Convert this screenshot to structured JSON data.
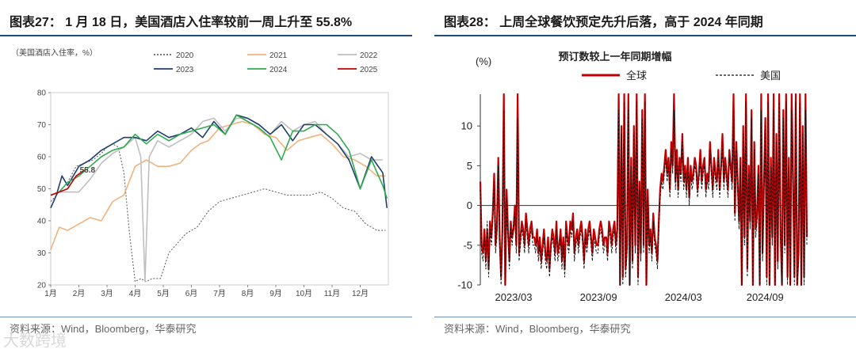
{
  "left": {
    "title": "图表27：  1 月 18 日，美国酒店入住率较前一周上升至 55.8%",
    "source": "资料来源：Wind，Bloomberg，华泰研究",
    "watermark": "大数跨境"
  },
  "right": {
    "title": "图表28：  上周全球餐饮预定先升后落，高于 2024 年同期",
    "source": "资料来源：Wind，Bloomberg，华泰研究"
  },
  "chart_data": [
    {
      "type": "line",
      "ylabel": "（美国酒店入住率，%）",
      "ylim": [
        20,
        80
      ],
      "yticks": [
        20,
        30,
        40,
        50,
        60,
        70,
        80
      ],
      "xlim": [
        1,
        13
      ],
      "xticks": [
        "1月",
        "2月",
        "3月",
        "4月",
        "5月",
        "6月",
        "7月",
        "8月",
        "9月",
        "10月",
        "11月",
        "12月"
      ],
      "legend_position": "top",
      "annotation": {
        "text": "55.8",
        "x": 2.2,
        "y": 55.8
      },
      "series": [
        {
          "name": "2020",
          "color": "#666666",
          "dash": "2,2",
          "x": [
            1,
            1.3,
            1.6,
            1.9,
            2.2,
            2.5,
            2.8,
            3.0,
            3.2,
            3.4,
            3.6,
            3.8,
            4.0,
            4.2,
            4.4,
            4.6,
            4.9,
            5.2,
            5.5,
            5.8,
            6.2,
            6.6,
            7.0,
            7.4,
            7.8,
            8.2,
            8.6,
            9.0,
            9.4,
            9.8,
            10.2,
            10.6,
            11.0,
            11.4,
            11.8,
            12.2,
            12.6,
            12.9
          ],
          "y": [
            46,
            49,
            52,
            57,
            58,
            59,
            61,
            63,
            64,
            63,
            55,
            36,
            21,
            22,
            21,
            22,
            22,
            30,
            33,
            36,
            38,
            43,
            46,
            47,
            48,
            49,
            50,
            49,
            48,
            48,
            48,
            49,
            47,
            44,
            43,
            39,
            37,
            37
          ]
        },
        {
          "name": "2021",
          "color": "#f2b27e",
          "dash": "",
          "x": [
            1,
            1.3,
            1.6,
            2.0,
            2.4,
            2.8,
            3.2,
            3.6,
            4.0,
            4.4,
            4.8,
            5.2,
            5.6,
            6.0,
            6.3,
            6.6,
            7.0,
            7.4,
            7.8,
            8.2,
            8.6,
            9.0,
            9.4,
            9.8,
            10.2,
            10.6,
            11.0,
            11.4,
            11.8,
            12.2,
            12.6,
            12.9
          ],
          "y": [
            31,
            38,
            37,
            39,
            41,
            40,
            46,
            48,
            57,
            59,
            57,
            57,
            58,
            62,
            64,
            65,
            69,
            70,
            71,
            70,
            67,
            66,
            62,
            65,
            66,
            67,
            64,
            60,
            59,
            57,
            54,
            54
          ]
        },
        {
          "name": "2022",
          "color": "#bfbfbf",
          "dash": "",
          "x": [
            1,
            1.3,
            1.6,
            2.0,
            2.4,
            2.8,
            3.2,
            3.6,
            4.0,
            4.2,
            4.35,
            4.5,
            4.8,
            5.2,
            5.6,
            6.0,
            6.4,
            6.8,
            7.2,
            7.6,
            8.0,
            8.4,
            8.8,
            9.2,
            9.6,
            10.0,
            10.4,
            10.8,
            11.2,
            11.6,
            12.0,
            12.4,
            12.8
          ],
          "y": [
            48,
            49,
            49,
            49,
            53,
            58,
            61,
            63,
            66,
            60,
            21,
            60,
            65,
            63,
            65,
            67,
            71,
            72,
            68,
            72,
            72,
            70,
            67,
            71,
            68,
            70,
            71,
            67,
            64,
            60,
            61,
            59,
            59
          ]
        },
        {
          "name": "2023",
          "color": "#1f3f6e",
          "dash": "",
          "x": [
            1,
            1.2,
            1.4,
            1.6,
            2.0,
            2.4,
            2.8,
            3.2,
            3.6,
            4.0,
            4.4,
            4.8,
            5.2,
            5.6,
            6.0,
            6.4,
            6.8,
            7.2,
            7.6,
            8.0,
            8.4,
            8.8,
            9.2,
            9.6,
            10.0,
            10.4,
            10.8,
            11.2,
            11.6,
            12.0,
            12.4,
            12.8,
            12.95
          ],
          "y": [
            44,
            48,
            54,
            51,
            57,
            59,
            62,
            64,
            66,
            66,
            65,
            68,
            66,
            67,
            69,
            66,
            71,
            67,
            73,
            72,
            70,
            67,
            70,
            65,
            70,
            70,
            67,
            64,
            59,
            50,
            60,
            55,
            44
          ]
        },
        {
          "name": "2024",
          "color": "#2fab4f",
          "dash": "",
          "x": [
            1,
            1.3,
            1.6,
            2.0,
            2.4,
            2.8,
            3.2,
            3.6,
            4.0,
            4.4,
            4.8,
            5.2,
            5.6,
            6.0,
            6.4,
            6.8,
            7.2,
            7.6,
            8.0,
            8.4,
            8.8,
            9.2,
            9.6,
            10.0,
            10.4,
            10.8,
            11.2,
            11.6,
            12.0,
            12.4,
            12.8,
            12.95
          ],
          "y": [
            48,
            49,
            52,
            54,
            57,
            60,
            62,
            63,
            67,
            64,
            67,
            65,
            67,
            68,
            69,
            70,
            67,
            73,
            71,
            69,
            66,
            59,
            68,
            68,
            70,
            70,
            67,
            62,
            50,
            59,
            51,
            47
          ]
        },
        {
          "name": "2025",
          "color": "#c00000",
          "dash": "",
          "x": [
            1,
            1.3,
            1.6,
            1.9,
            2.2
          ],
          "y": [
            48,
            49,
            50,
            54,
            55.8
          ]
        }
      ]
    },
    {
      "type": "line",
      "title": "预订数较上一年同期增幅",
      "ylabel": "(%)",
      "ylim": [
        -10,
        14
      ],
      "yticks": [
        -10,
        -5,
        0,
        5,
        10
      ],
      "xlim": [
        0,
        1
      ],
      "xticks": [
        {
          "label": "2023/03",
          "pos": 0.04
        },
        {
          "label": "2023/09",
          "pos": 0.3
        },
        {
          "label": "2024/03",
          "pos": 0.56
        },
        {
          "label": "2024/09",
          "pos": 0.81
        }
      ],
      "legend_position": "top",
      "series": [
        {
          "name": "全球",
          "color": "#c00000",
          "dash": "",
          "y": [
            3,
            -5,
            -6,
            -3,
            -7,
            -3,
            -8,
            -2,
            -4,
            -1,
            4,
            -5,
            -3,
            6,
            -4,
            -9,
            -3,
            14,
            -10,
            2,
            -3,
            -7,
            -2,
            -4,
            -3,
            0,
            -5,
            14,
            -6,
            -4,
            -2,
            -3,
            -5,
            -1,
            -3,
            -5,
            -3,
            -2,
            -4,
            -4,
            -5,
            -3,
            -6,
            -4,
            -7,
            -5,
            -3,
            -6,
            -7,
            -4,
            -8,
            -5,
            -3,
            -4,
            -6,
            -2,
            -6,
            -5,
            -3,
            -7,
            -4,
            -8,
            -2,
            -4,
            -5,
            -2,
            -3,
            -1,
            -6,
            -4,
            -3,
            -5,
            -3,
            -2,
            -4,
            -7,
            -3,
            -5,
            -3,
            -2,
            -4,
            -6,
            -3,
            -4,
            -5,
            -5,
            -3,
            -2,
            -3,
            -5,
            -4,
            -4,
            -6,
            -2,
            -3,
            -5,
            -3,
            -2,
            -5,
            -3,
            14,
            -10,
            10,
            -9,
            14,
            -8,
            -5,
            14,
            -10,
            6,
            -7,
            10,
            -5,
            14,
            -9,
            3,
            -6,
            12,
            -5,
            14,
            -10,
            2,
            -5,
            -3,
            -6,
            -1,
            -4,
            -5,
            -7,
            -2,
            2,
            4,
            3,
            5,
            7,
            4,
            6,
            2,
            8,
            5,
            14,
            3,
            7,
            2,
            6,
            4,
            9,
            3,
            5,
            2,
            6,
            1,
            5,
            3,
            4,
            6,
            5,
            2,
            4,
            7,
            3,
            5,
            6,
            2,
            4,
            3,
            8,
            5,
            2,
            6,
            4,
            3,
            7,
            2,
            5,
            9,
            3,
            6,
            4,
            2,
            7,
            5,
            3,
            14,
            -1,
            8,
            3,
            -2,
            6,
            -10,
            10,
            -4,
            14,
            -8,
            5,
            -2,
            12,
            -10,
            8,
            -3,
            -1,
            5,
            -10,
            14,
            -6,
            3,
            11,
            -9,
            14,
            -10,
            6,
            -4,
            14,
            -10,
            9,
            -7,
            14,
            -3,
            -10,
            12,
            -5,
            14,
            -9,
            6,
            -10,
            14,
            4,
            -9,
            14,
            -10,
            -6,
            14,
            -10,
            10,
            -9,
            14,
            -4
          ]
        },
        {
          "name": "美国",
          "color": "#111111",
          "dash": "3,2",
          "y": [
            2,
            -6,
            -7,
            -4,
            -8,
            -2,
            -9,
            -3,
            -5,
            -2,
            3,
            -6,
            -4,
            5,
            -5,
            -10,
            -4,
            12,
            -10,
            1,
            -4,
            -8,
            -3,
            -5,
            -2,
            -1,
            -6,
            11,
            -7,
            -5,
            -3,
            -4,
            -6,
            -2,
            -4,
            -6,
            -4,
            -3,
            -5,
            -5,
            -6,
            -4,
            -7,
            -5,
            -8,
            -6,
            -4,
            -7,
            -8,
            -5,
            -9,
            -6,
            -4,
            -5,
            -7,
            -3,
            -7,
            -6,
            -4,
            -8,
            -5,
            -9,
            -3,
            -5,
            -6,
            -3,
            -4,
            -2,
            -7,
            -5,
            -4,
            -6,
            -4,
            -3,
            -5,
            -8,
            -4,
            -6,
            -4,
            -3,
            -5,
            -7,
            -4,
            -5,
            -6,
            -6,
            -4,
            -3,
            -4,
            -6,
            -5,
            -5,
            -7,
            -3,
            -4,
            -6,
            -4,
            -3,
            -6,
            -4,
            12,
            -10,
            9,
            -10,
            13,
            -9,
            -6,
            12,
            -10,
            5,
            -8,
            9,
            -6,
            13,
            -10,
            2,
            -7,
            11,
            -6,
            13,
            -10,
            1,
            -6,
            -4,
            -7,
            -2,
            -5,
            -6,
            -8,
            -3,
            1,
            3,
            2,
            4,
            6,
            3,
            5,
            1,
            7,
            4,
            12,
            2,
            6,
            1,
            5,
            3,
            8,
            2,
            4,
            1,
            5,
            0,
            4,
            2,
            3,
            5,
            4,
            1,
            3,
            6,
            2,
            4,
            5,
            1,
            3,
            2,
            7,
            4,
            1,
            5,
            3,
            2,
            6,
            1,
            4,
            8,
            2,
            5,
            3,
            1,
            6,
            4,
            2,
            12,
            -2,
            7,
            2,
            -3,
            5,
            -10,
            9,
            -5,
            13,
            -9,
            4,
            -3,
            11,
            -10,
            7,
            -4,
            -2,
            4,
            -10,
            12,
            -7,
            2,
            10,
            -10,
            13,
            -10,
            5,
            -5,
            12,
            -10,
            8,
            -8,
            13,
            -4,
            -10,
            11,
            -6,
            13,
            -10,
            5,
            -10,
            12,
            3,
            -10,
            13,
            -10,
            -7,
            13,
            -10,
            9,
            -10,
            12,
            -5
          ]
        }
      ]
    }
  ]
}
